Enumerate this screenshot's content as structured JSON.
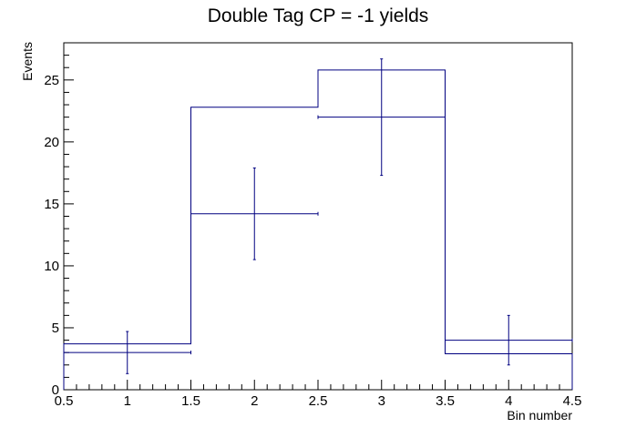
{
  "chart_data": {
    "type": "bar",
    "title": "Double Tag CP = -1 yields",
    "xlabel": "Bin number",
    "ylabel": "Events",
    "xlim": [
      0.5,
      4.5
    ],
    "ylim": [
      0,
      28
    ],
    "x_ticks": [
      "0.5",
      "1",
      "1.5",
      "2",
      "2.5",
      "3",
      "3.5",
      "4",
      "4.5"
    ],
    "y_ticks": [
      "0",
      "5",
      "10",
      "15",
      "20",
      "25"
    ],
    "grid": false,
    "series": [
      {
        "style": "histogram-step",
        "x": [
          1,
          2,
          3,
          4
        ],
        "values": [
          3.7,
          22.8,
          25.8,
          2.9
        ]
      },
      {
        "style": "points-with-error-bars",
        "x": [
          1,
          2,
          3,
          4
        ],
        "values": [
          3.0,
          14.2,
          22.0,
          4.0
        ],
        "errors_low": [
          1.7,
          3.7,
          4.7,
          2.0
        ],
        "errors_high": [
          1.7,
          3.7,
          4.7,
          2.0
        ]
      }
    ],
    "colors": {
      "histogram": "#000080",
      "points": "#000080",
      "axes": "#000000"
    }
  }
}
